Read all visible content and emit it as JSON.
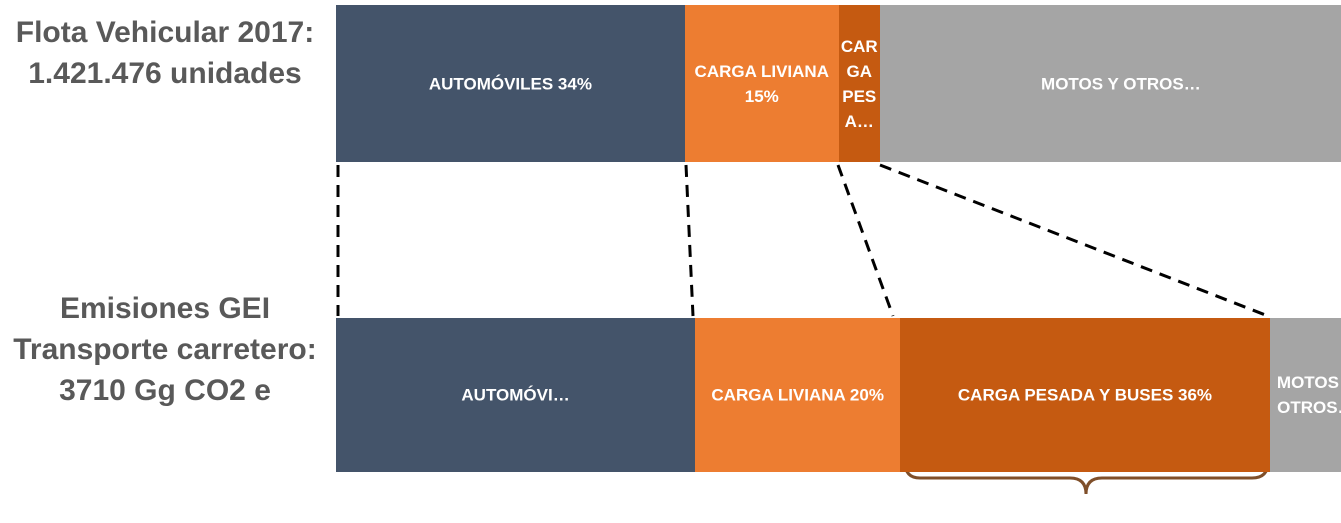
{
  "chart_data": {
    "type": "stacked-bar",
    "categories": [
      "Flota Vehicular 2017: 1.421.476 unidades",
      "Emisiones GEI Transporte carretero: 3710 Gg CO2 e"
    ],
    "series": [
      {
        "color": "#44546a",
        "values": [
          34,
          35
        ],
        "value_labels": [
          "AUTOMÓVILES 34%",
          "AUTOMÓVI…"
        ]
      },
      {
        "color": "#ed7d31",
        "values": [
          15,
          20
        ],
        "value_labels": [
          "CARGA LIVIANA 15%",
          "CARGA LIVIANA 20%"
        ]
      },
      {
        "color": "#c55a11",
        "values": [
          4,
          36
        ],
        "value_labels": [
          "CARGA PESA…",
          "CARGA PESADA Y BUSES 36%"
        ]
      },
      {
        "color": "#a5a5a5",
        "values": [
          47,
          9
        ],
        "value_labels": [
          "MOTOS Y OTROS…",
          "MOTOS Y OTROS…"
        ]
      }
    ]
  }
}
